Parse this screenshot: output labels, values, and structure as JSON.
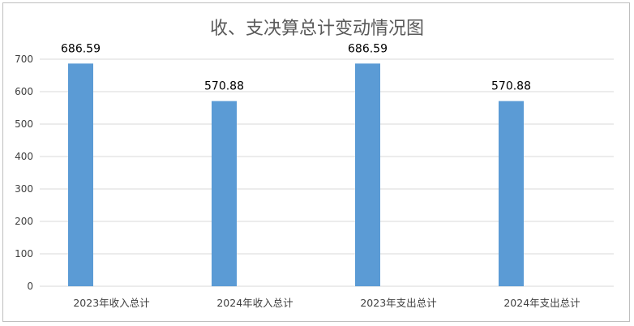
{
  "chart_data": {
    "type": "bar",
    "title": "收、支决算总计变动情况图",
    "categories": [
      "2023年收入总计",
      "2024年收入总计",
      "2023年支出总计",
      "2024年支出总计"
    ],
    "values": [
      686.59,
      570.88,
      686.59,
      570.88
    ],
    "data_labels": [
      "686.59",
      "570.88",
      "686.59",
      "570.88"
    ],
    "ylim": [
      0,
      700
    ],
    "yticks": [
      0,
      100,
      200,
      300,
      400,
      500,
      600,
      700
    ],
    "xlabel": "",
    "ylabel": "",
    "grid": true,
    "legend": "none",
    "bar_color": "#5b9bd5"
  }
}
